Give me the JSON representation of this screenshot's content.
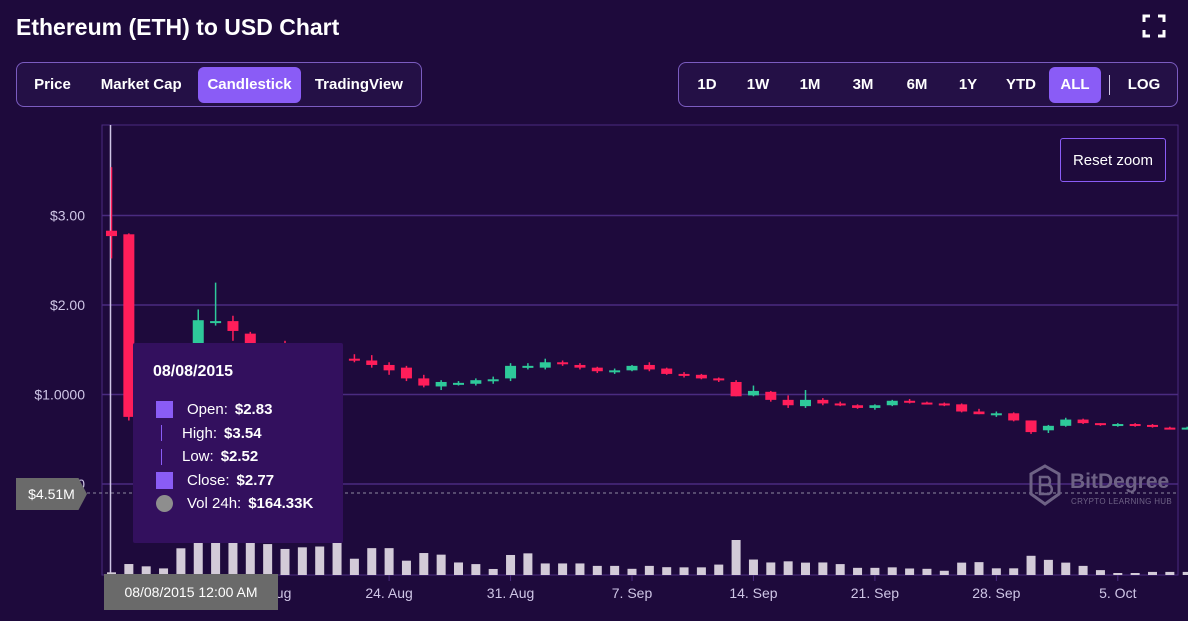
{
  "title": "Ethereum (ETH) to USD Chart",
  "tabs": [
    "Price",
    "Market Cap",
    "Candlestick",
    "TradingView"
  ],
  "active_tab": "Candlestick",
  "ranges": [
    "1D",
    "1W",
    "1M",
    "3M",
    "6M",
    "1Y",
    "YTD",
    "ALL"
  ],
  "active_range": "ALL",
  "log_label": "LOG",
  "reset_zoom": "Reset zoom",
  "tooltip": {
    "date": "08/08/2015",
    "open_label": "Open:",
    "open": "$2.83",
    "high_label": "High:",
    "high": "$3.54",
    "low_label": "Low:",
    "low": "$2.52",
    "close_label": "Close:",
    "close": "$2.77",
    "vol_label": "Vol 24h:",
    "vol": "$164.33K"
  },
  "crosshair_value": "$4.51M",
  "crosshair_date": "08/08/2015 12:00 AM",
  "watermark": {
    "brand": "BitDegree",
    "tagline": "CRYPTO LEARNING HUB"
  },
  "colors": {
    "up": "#2ec99a",
    "down": "#ff1e5a",
    "accent": "#8a5cf6",
    "volume": "#d3cbd8",
    "grid": "#4a2b80",
    "bg": "#1e0a3c"
  },
  "chart_data": {
    "type": "candlestick",
    "y_tick_labels": [
      "$0",
      "$1.0000",
      "$2.00",
      "$3.00"
    ],
    "y_ticks": [
      0,
      1,
      2,
      3
    ],
    "ylim": [
      0,
      3.9
    ],
    "x_tick_labels": [
      "17. Aug",
      "24. Aug",
      "31. Aug",
      "7. Sep",
      "14. Sep",
      "21. Sep",
      "28. Sep",
      "5. Oct"
    ],
    "x_tick_day_index": [
      9,
      16,
      23,
      30,
      37,
      44,
      51,
      58
    ],
    "candles": [
      {
        "o": 2.83,
        "h": 3.54,
        "l": 2.52,
        "c": 2.77,
        "v": 164.33
      },
      {
        "o": 2.79,
        "h": 2.8,
        "l": 0.71,
        "c": 0.75,
        "v": 674
      },
      {
        "o": null,
        "h": null,
        "l": null,
        "c": null,
        "v": 532
      },
      {
        "o": null,
        "h": null,
        "l": null,
        "c": null,
        "v": 405
      },
      {
        "o": null,
        "h": null,
        "l": null,
        "c": null,
        "v": 1640
      },
      {
        "o": 1.25,
        "h": 1.95,
        "l": 1.2,
        "c": 1.83,
        "v": 2050
      },
      {
        "o": 1.8,
        "h": 2.25,
        "l": 1.77,
        "c": 1.82,
        "v": 2150
      },
      {
        "o": 1.82,
        "h": 1.88,
        "l": 1.6,
        "c": 1.71,
        "v": 2050
      },
      {
        "o": 1.68,
        "h": 1.7,
        "l": 1.5,
        "c": 1.55,
        "v": 2000
      },
      {
        "o": 1.55,
        "h": 1.56,
        "l": 1.5,
        "c": 1.52,
        "v": 1900
      },
      {
        "o": 1.52,
        "h": 1.6,
        "l": 1.4,
        "c": 1.45,
        "v": 1600
      },
      {
        "o": 1.45,
        "h": 1.48,
        "l": 1.35,
        "c": 1.4,
        "v": 1700
      },
      {
        "o": 1.4,
        "h": 1.55,
        "l": 1.38,
        "c": 1.5,
        "v": 1750
      },
      {
        "o": 1.5,
        "h": 1.56,
        "l": 1.35,
        "c": 1.39,
        "v": 2150
      },
      {
        "o": 1.4,
        "h": 1.45,
        "l": 1.36,
        "c": 1.38,
        "v": 1000
      },
      {
        "o": 1.38,
        "h": 1.44,
        "l": 1.3,
        "c": 1.33,
        "v": 1650
      },
      {
        "o": 1.33,
        "h": 1.36,
        "l": 1.22,
        "c": 1.27,
        "v": 1650
      },
      {
        "o": 1.3,
        "h": 1.32,
        "l": 1.15,
        "c": 1.18,
        "v": 880
      },
      {
        "o": 1.18,
        "h": 1.22,
        "l": 1.08,
        "c": 1.1,
        "v": 1350
      },
      {
        "o": 1.09,
        "h": 1.16,
        "l": 1.05,
        "c": 1.14,
        "v": 1250
      },
      {
        "o": 1.12,
        "h": 1.15,
        "l": 1.1,
        "c": 1.13,
        "v": 770
      },
      {
        "o": 1.12,
        "h": 1.18,
        "l": 1.1,
        "c": 1.16,
        "v": 670
      },
      {
        "o": 1.15,
        "h": 1.2,
        "l": 1.12,
        "c": 1.17,
        "v": 370
      },
      {
        "o": 1.18,
        "h": 1.35,
        "l": 1.15,
        "c": 1.32,
        "v": 1230
      },
      {
        "o": 1.31,
        "h": 1.35,
        "l": 1.28,
        "c": 1.32,
        "v": 1330
      },
      {
        "o": 1.3,
        "h": 1.4,
        "l": 1.28,
        "c": 1.36,
        "v": 710
      },
      {
        "o": 1.36,
        "h": 1.38,
        "l": 1.32,
        "c": 1.34,
        "v": 710
      },
      {
        "o": 1.33,
        "h": 1.35,
        "l": 1.28,
        "c": 1.3,
        "v": 710
      },
      {
        "o": 1.3,
        "h": 1.31,
        "l": 1.24,
        "c": 1.26,
        "v": 560
      },
      {
        "o": 1.25,
        "h": 1.29,
        "l": 1.23,
        "c": 1.27,
        "v": 560
      },
      {
        "o": 1.27,
        "h": 1.33,
        "l": 1.26,
        "c": 1.32,
        "v": 380
      },
      {
        "o": 1.33,
        "h": 1.36,
        "l": 1.26,
        "c": 1.28,
        "v": 560
      },
      {
        "o": 1.29,
        "h": 1.3,
        "l": 1.22,
        "c": 1.23,
        "v": 480
      },
      {
        "o": 1.23,
        "h": 1.25,
        "l": 1.19,
        "c": 1.22,
        "v": 470
      },
      {
        "o": 1.22,
        "h": 1.23,
        "l": 1.17,
        "c": 1.18,
        "v": 470
      },
      {
        "o": 1.18,
        "h": 1.19,
        "l": 1.14,
        "c": 1.16,
        "v": 640
      },
      {
        "o": 1.14,
        "h": 1.16,
        "l": 0.98,
        "c": 0.98,
        "v": 2150
      },
      {
        "o": 0.99,
        "h": 1.1,
        "l": 0.98,
        "c": 1.04,
        "v": 950
      },
      {
        "o": 1.03,
        "h": 1.04,
        "l": 0.92,
        "c": 0.94,
        "v": 770
      },
      {
        "o": 0.94,
        "h": 0.99,
        "l": 0.85,
        "c": 0.88,
        "v": 840
      },
      {
        "o": 0.87,
        "h": 1.05,
        "l": 0.85,
        "c": 0.94,
        "v": 760
      },
      {
        "o": 0.94,
        "h": 0.96,
        "l": 0.88,
        "c": 0.9,
        "v": 770
      },
      {
        "o": 0.9,
        "h": 0.92,
        "l": 0.87,
        "c": 0.88,
        "v": 670
      },
      {
        "o": 0.88,
        "h": 0.89,
        "l": 0.84,
        "c": 0.85,
        "v": 440
      },
      {
        "o": 0.85,
        "h": 0.89,
        "l": 0.83,
        "c": 0.88,
        "v": 440
      },
      {
        "o": 0.88,
        "h": 0.94,
        "l": 0.87,
        "c": 0.93,
        "v": 470
      },
      {
        "o": 0.93,
        "h": 0.95,
        "l": 0.9,
        "c": 0.91,
        "v": 400
      },
      {
        "o": 0.91,
        "h": 0.92,
        "l": 0.89,
        "c": 0.9,
        "v": 380
      },
      {
        "o": 0.9,
        "h": 0.91,
        "l": 0.87,
        "c": 0.89,
        "v": 260
      },
      {
        "o": 0.89,
        "h": 0.9,
        "l": 0.8,
        "c": 0.81,
        "v": 760
      },
      {
        "o": 0.81,
        "h": 0.84,
        "l": 0.78,
        "c": 0.78,
        "v": 790
      },
      {
        "o": 0.78,
        "h": 0.81,
        "l": 0.75,
        "c": 0.79,
        "v": 410
      },
      {
        "o": 0.79,
        "h": 0.8,
        "l": 0.7,
        "c": 0.71,
        "v": 410
      },
      {
        "o": 0.71,
        "h": 0.71,
        "l": 0.56,
        "c": 0.58,
        "v": 1180
      },
      {
        "o": 0.6,
        "h": 0.66,
        "l": 0.57,
        "c": 0.65,
        "v": 930
      },
      {
        "o": 0.65,
        "h": 0.74,
        "l": 0.64,
        "c": 0.72,
        "v": 760
      },
      {
        "o": 0.72,
        "h": 0.73,
        "l": 0.67,
        "c": 0.68,
        "v": 560
      },
      {
        "o": 0.68,
        "h": 0.68,
        "l": 0.65,
        "c": 0.66,
        "v": 300
      },
      {
        "o": 0.66,
        "h": 0.68,
        "l": 0.64,
        "c": 0.67,
        "v": 60
      },
      {
        "o": 0.67,
        "h": 0.68,
        "l": 0.64,
        "c": 0.65,
        "v": 60
      },
      {
        "o": 0.66,
        "h": 0.67,
        "l": 0.63,
        "c": 0.64,
        "v": 190
      },
      {
        "o": 0.63,
        "h": 0.64,
        "l": 0.61,
        "c": 0.62,
        "v": 190
      },
      {
        "o": 0.62,
        "h": 0.64,
        "l": 0.61,
        "c": 0.63,
        "v": 190
      },
      {
        "o": 0.62,
        "h": 0.63,
        "l": 0.58,
        "c": 0.6,
        "v": 220
      },
      {
        "o": 0.6,
        "h": 0.61,
        "l": 0.58,
        "c": 0.59,
        "v": 220
      },
      {
        "o": 0.58,
        "h": 0.62,
        "l": 0.57,
        "c": 0.61,
        "v": 220
      }
    ]
  }
}
